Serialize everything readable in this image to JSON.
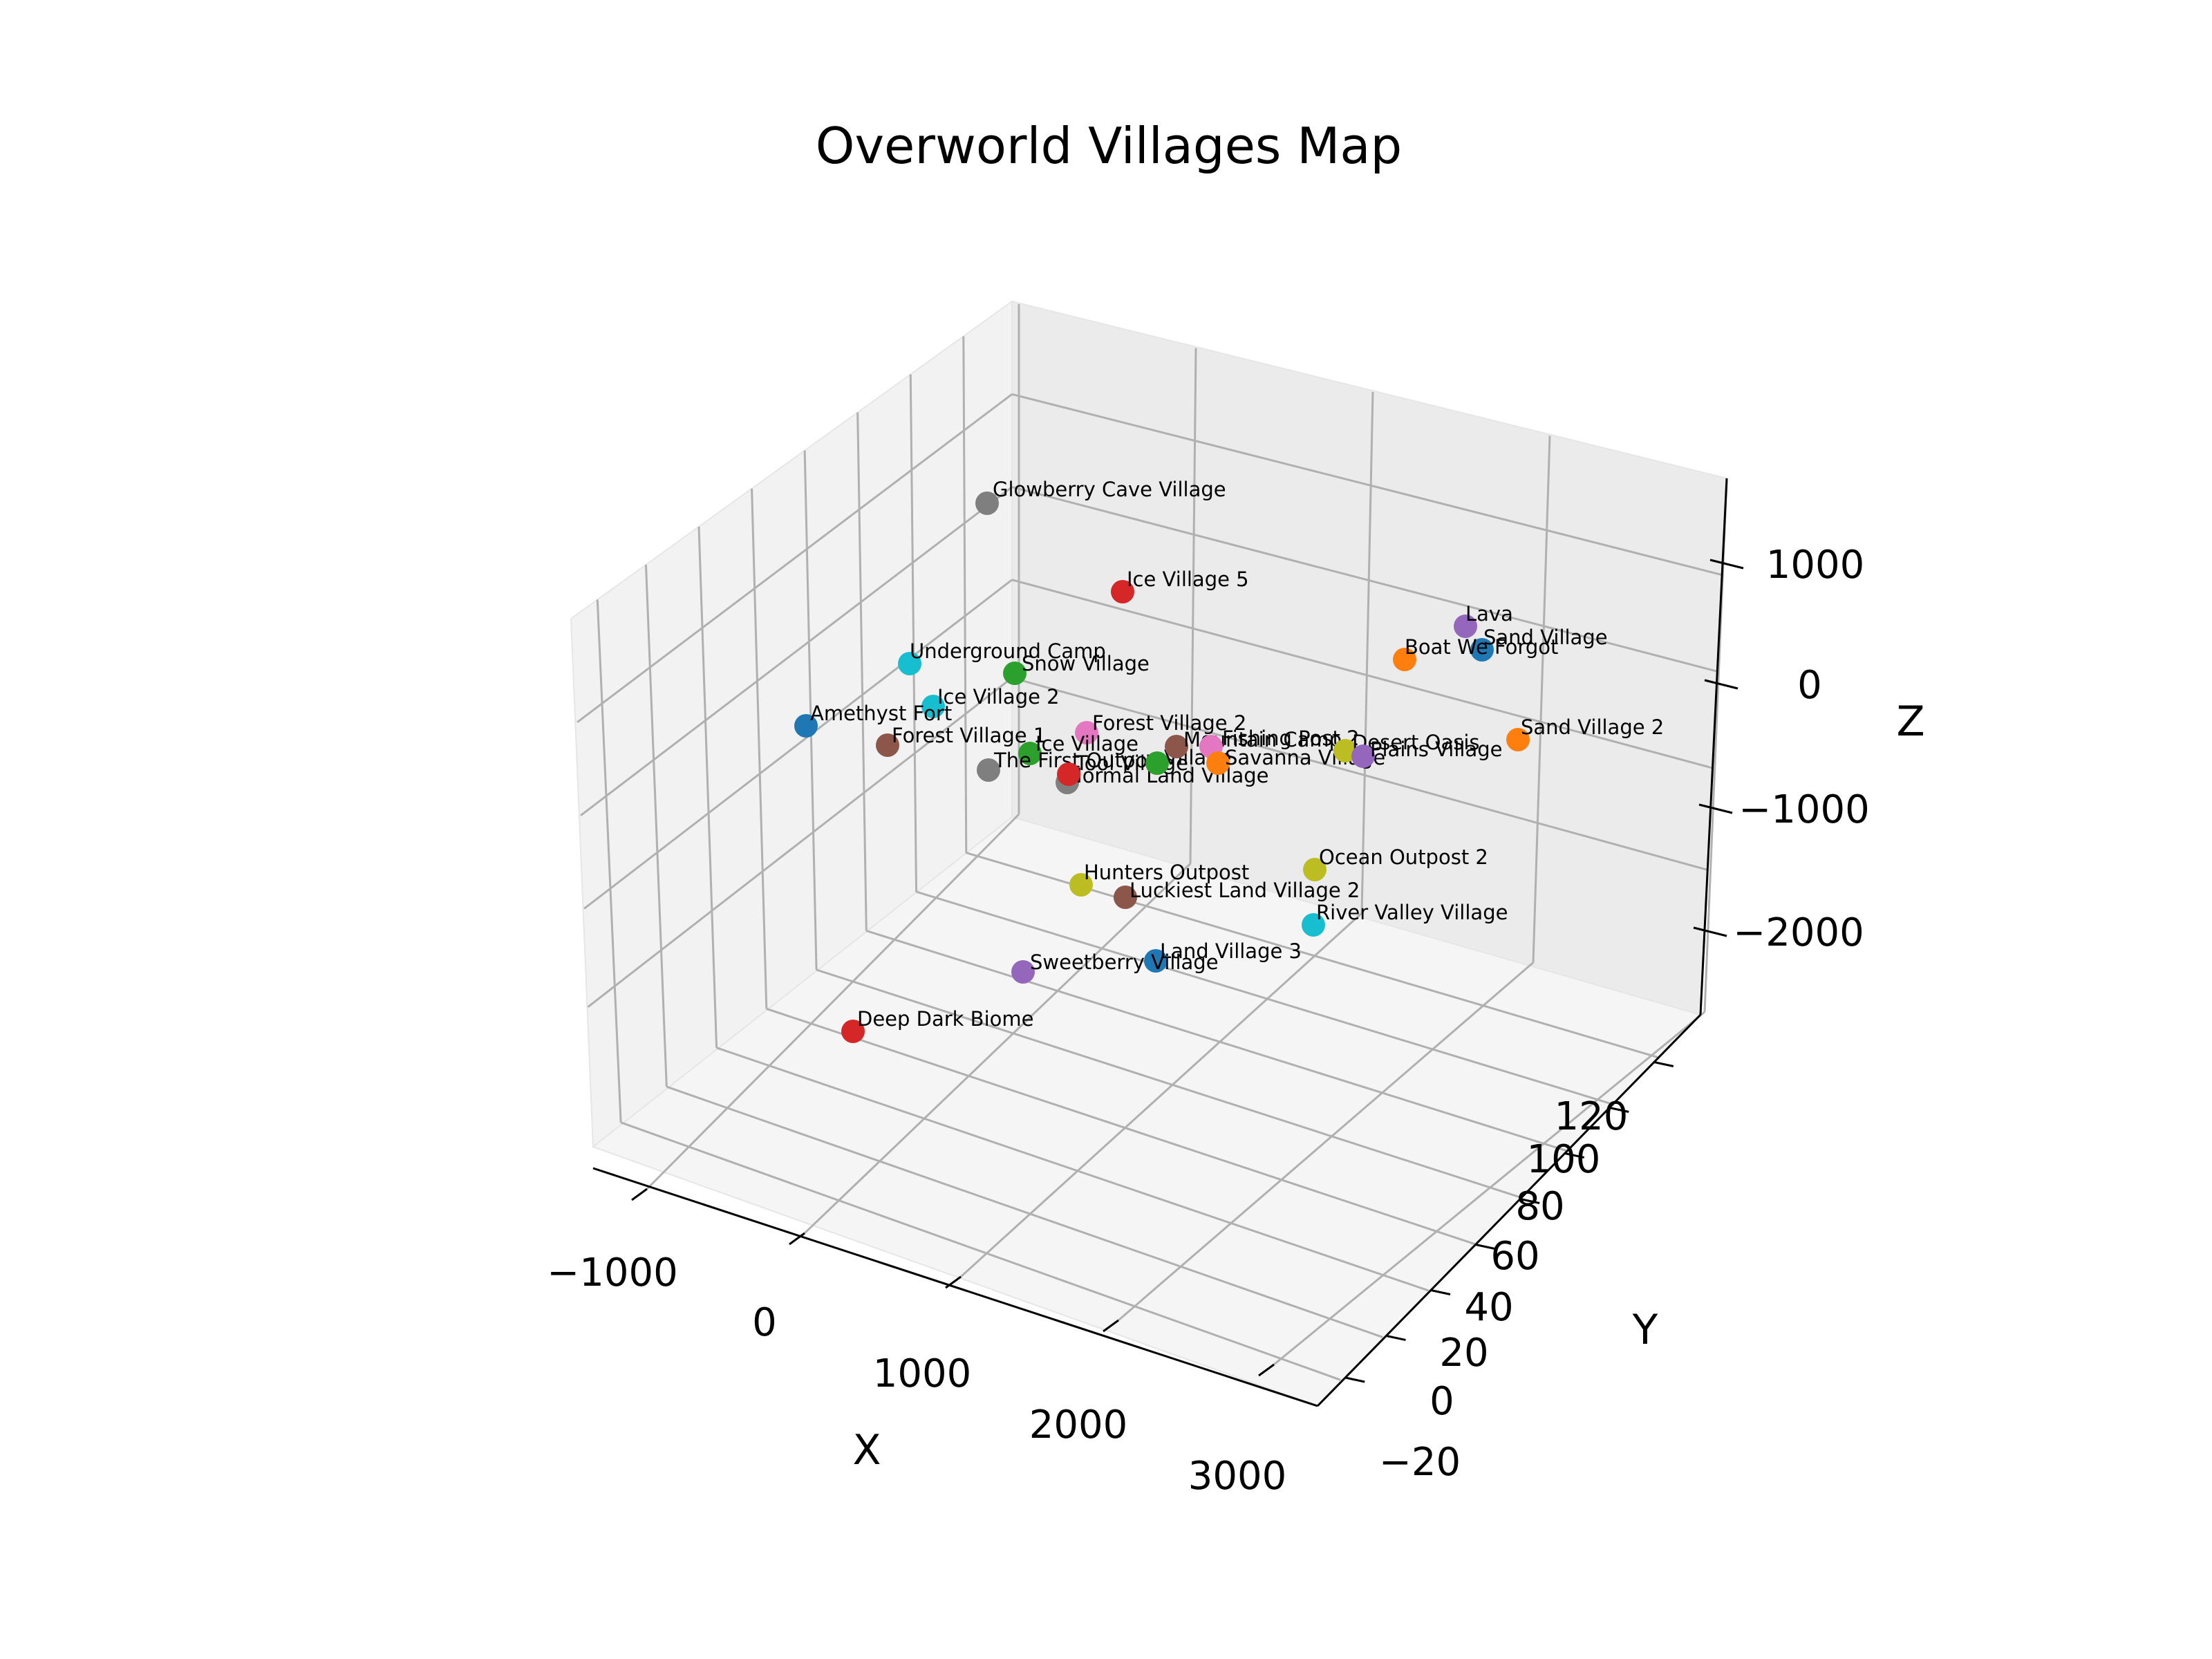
{
  "chart_data": {
    "type": "scatter",
    "title": "Overworld Villages Map",
    "xlabel": "X",
    "ylabel": "Y",
    "zlabel": "Z",
    "xticks": [
      "−1000",
      "0",
      "1000",
      "2000",
      "3000"
    ],
    "yticks": [
      "−20",
      "0",
      "20",
      "40",
      "60",
      "80",
      "100",
      "120"
    ],
    "zticks": [
      "1000",
      "0",
      "−1000",
      "−2000"
    ],
    "grid": true,
    "points": [
      {
        "name": "Glowberry Cave Village",
        "color": "#7f7f7f"
      },
      {
        "name": "Ice Village 5",
        "color": "#d62728"
      },
      {
        "name": "Lava",
        "color": "#9467bd"
      },
      {
        "name": "Sand Village",
        "color": "#1f77b4"
      },
      {
        "name": "Boat We Forgot",
        "color": "#ff7f0e"
      },
      {
        "name": "Underground Camp",
        "color": "#17becf"
      },
      {
        "name": "Snow Village",
        "color": "#2ca02c"
      },
      {
        "name": "Ice Village 2",
        "color": "#17becf"
      },
      {
        "name": "Amethyst Fort",
        "color": "#1f77b4"
      },
      {
        "name": "Forest Village 1",
        "color": "#8c564b"
      },
      {
        "name": "Forest Village 2",
        "color": "#e377c2"
      },
      {
        "name": "Sand Village 2",
        "color": "#ff7f0e"
      },
      {
        "name": "Ice Village",
        "color": "#2ca02c"
      },
      {
        "name": "The First Outpost",
        "color": "#7f7f7f"
      },
      {
        "name": "Normal Land Village",
        "color": "#7f7f7f"
      },
      {
        "name": "Tool Village",
        "color": "#d62728"
      },
      {
        "name": "Village",
        "color": "#2ca02c"
      },
      {
        "name": "Mountain Camp",
        "color": "#8c564b"
      },
      {
        "name": "Fishing Post 2",
        "color": "#e377c2"
      },
      {
        "name": "Savanna Village",
        "color": "#ff7f0e"
      },
      {
        "name": "Desert Oasis",
        "color": "#bcbd22"
      },
      {
        "name": "Plains Village",
        "color": "#9467bd"
      },
      {
        "name": "Ocean Outpost 2",
        "color": "#bcbd22"
      },
      {
        "name": "Hunters Outpost",
        "color": "#bcbd22"
      },
      {
        "name": "Luckiest Land Village 2",
        "color": "#8c564b"
      },
      {
        "name": "River Valley Village",
        "color": "#17becf"
      },
      {
        "name": "Land Village 3",
        "color": "#1f77b4"
      },
      {
        "name": "Sweetberry Village",
        "color": "#9467bd"
      },
      {
        "name": "Deep Dark Biome",
        "color": "#d62728"
      }
    ]
  }
}
